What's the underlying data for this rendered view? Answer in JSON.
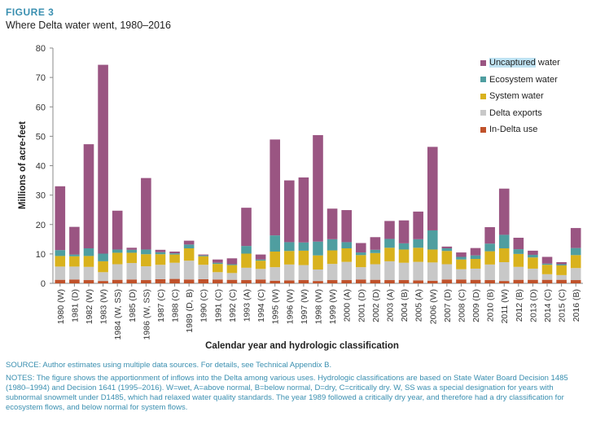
{
  "figure_label": "FIGURE 3",
  "figure_title": "Where Delta water went, 1980–2016",
  "source_prefix": "SOURCE: Author estimates using multiple data sources. For details, see ",
  "source_link": "Technical Appendix B",
  "source_suffix": ".",
  "notes": "NOTES: The figure shows the apportionment of inflows into the Delta among various uses. Hydrologic classifications are based on State Water Board Decision 1485 (1980–1994) and Decision 1641 (1995–2016). W=wet, A=above normal, B=below normal, D=dry, C=critically dry. W, SS was a special designation for years with subnormal snowmelt under D1485, which had relaxed water quality standards. The year 1989 followed a critically dry year, and therefore had a dry classification for ecosystem flows, and below normal for system flows.",
  "chart_data": {
    "type": "bar",
    "stacked": true,
    "xlabel": "Calendar year and hydrologic classification",
    "ylabel": "Millions of acre-feet",
    "ylim": [
      0,
      80
    ],
    "yticks": [
      0,
      10,
      20,
      30,
      40,
      50,
      60,
      70,
      80
    ],
    "grid": false,
    "legend_position": "top-right",
    "categories": [
      "1980 (W)",
      "1981 (D)",
      "1982 (W)",
      "1983 (W)",
      "1984 (W, SS)",
      "1985 (D)",
      "1986 (W, SS)",
      "1987 (C)",
      "1988 (C)",
      "1989 (D, B)",
      "1990 (C)",
      "1991 (C)",
      "1992 (C)",
      "1993 (A)",
      "1994 (C)",
      "1995 (W)",
      "1996 (W)",
      "1997 (W)",
      "1998 (W)",
      "1999 (W)",
      "2000 (A)",
      "2001 (D)",
      "2002 (D)",
      "2003 (A)",
      "2004 (B)",
      "2005 (A)",
      "2006 (W)",
      "2007 (D)",
      "2008 (C)",
      "2009 (D)",
      "2010 (B)",
      "2011 (W)",
      "2012 (B)",
      "2013 (D)",
      "2014 (C)",
      "2015 (C)",
      "2016 (B)"
    ],
    "series": [
      {
        "name": "In-Delta use",
        "color": "#c0522b",
        "values": [
          1.2,
          1.3,
          1.1,
          0.8,
          1.2,
          1.3,
          1.1,
          1.4,
          1.5,
          1.3,
          1.4,
          1.3,
          1.2,
          1.1,
          1.3,
          0.9,
          1.0,
          1.1,
          0.8,
          1.1,
          1.1,
          1.3,
          1.2,
          1.1,
          1.1,
          1.0,
          0.9,
          1.3,
          1.3,
          1.2,
          1.1,
          0.8,
          1.2,
          1.2,
          1.2,
          1.2,
          1.1
        ]
      },
      {
        "name": "Delta exports",
        "color": "#c8c8c8",
        "values": [
          4.5,
          4.4,
          4.5,
          3.0,
          5.3,
          5.6,
          4.7,
          4.9,
          5.5,
          6.4,
          4.9,
          2.5,
          2.3,
          4.2,
          3.6,
          4.6,
          5.4,
          5.1,
          3.9,
          5.5,
          6.2,
          4.2,
          5.3,
          6.4,
          5.9,
          6.3,
          6.2,
          5.2,
          3.5,
          3.8,
          5.3,
          6.4,
          4.4,
          3.8,
          1.9,
          1.6,
          4.1
        ]
      },
      {
        "name": "System water",
        "color": "#d9b21d",
        "values": [
          3.6,
          3.5,
          3.7,
          3.7,
          3.9,
          3.5,
          4.1,
          3.6,
          2.8,
          4.2,
          2.9,
          2.8,
          2.7,
          4.8,
          2.8,
          5.3,
          4.6,
          4.9,
          4.8,
          4.6,
          4.6,
          4.1,
          3.8,
          4.6,
          4.5,
          4.8,
          4.4,
          4.5,
          3.3,
          3.3,
          4.5,
          4.7,
          4.4,
          3.8,
          3.2,
          3.3,
          4.4
        ]
      },
      {
        "name": "Ecosystem water",
        "color": "#4f9ea0",
        "values": [
          2.0,
          0.6,
          2.6,
          2.6,
          1.1,
          1.0,
          1.6,
          0.7,
          0.4,
          1.3,
          0.3,
          0.4,
          0.3,
          2.6,
          0.4,
          5.5,
          3.0,
          2.8,
          4.7,
          3.8,
          2.1,
          0.9,
          1.1,
          3.0,
          2.1,
          2.9,
          6.5,
          0.9,
          0.9,
          1.2,
          2.6,
          4.6,
          1.6,
          0.9,
          0.4,
          0.4,
          2.4
        ]
      },
      {
        "name": "Uncaptured water",
        "color": "#9a5582",
        "values": [
          21.7,
          9.4,
          35.4,
          64.2,
          13.2,
          0.7,
          24.3,
          0.8,
          0.6,
          1.3,
          0.3,
          1.1,
          2.0,
          13.0,
          1.7,
          32.6,
          21.0,
          22.1,
          36.2,
          10.4,
          10.9,
          3.2,
          4.3,
          6.1,
          7.8,
          9.4,
          28.4,
          0.6,
          1.5,
          2.5,
          5.6,
          15.7,
          3.9,
          1.4,
          2.3,
          0.7,
          6.8
        ]
      }
    ]
  },
  "legend_order": [
    4,
    3,
    2,
    1,
    0
  ]
}
